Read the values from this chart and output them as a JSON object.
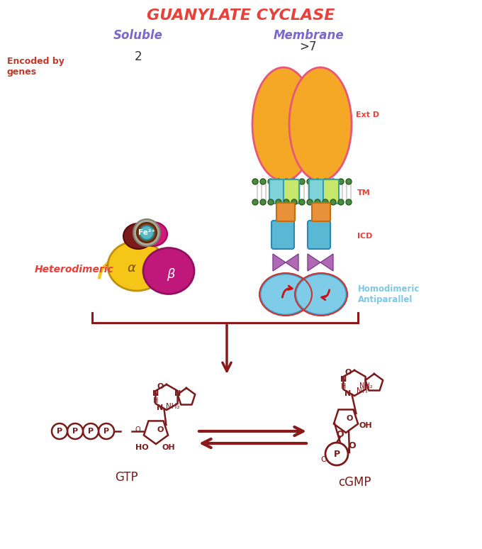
{
  "title": "GUANYLATE CYCLASE",
  "title_color": "#e8403a",
  "title_fontsize": 16,
  "soluble_label": "Soluble",
  "membrane_label": "Membrane",
  "label_color": "#7b68c8",
  "encoded_label": "Encoded by\ngenes",
  "encoded_color": "#c0392b",
  "soluble_count": "2",
  "membrane_count": ">7",
  "count_color": "#333333",
  "arrow_color": "#8b1a1a",
  "molecule_color": "#7b1a1a",
  "bg_color": "#ffffff",
  "orange_ellipse": "#f5a825",
  "orange_edge": "#e8567a",
  "green_dot": "#4a8c3f",
  "tm_teal": "#7dd3d8",
  "tm_yellow": "#c8e86c",
  "orange_box": "#e8913a",
  "blue_box": "#5bb8d4",
  "purple_diamond": "#b06ab3",
  "cat_blue": "#7ecce8",
  "alpha_yellow": "#f5c518",
  "beta_magenta": "#c0187a",
  "heme_gray": "#b0a898",
  "heme_teal": "#5ab8c0",
  "heme_brown": "#7b3a10",
  "yellow_line": "#f5c518",
  "hetero_red": "#e8403a",
  "homo_blue": "#7ec8e3",
  "red_arrow": "#cc1111"
}
